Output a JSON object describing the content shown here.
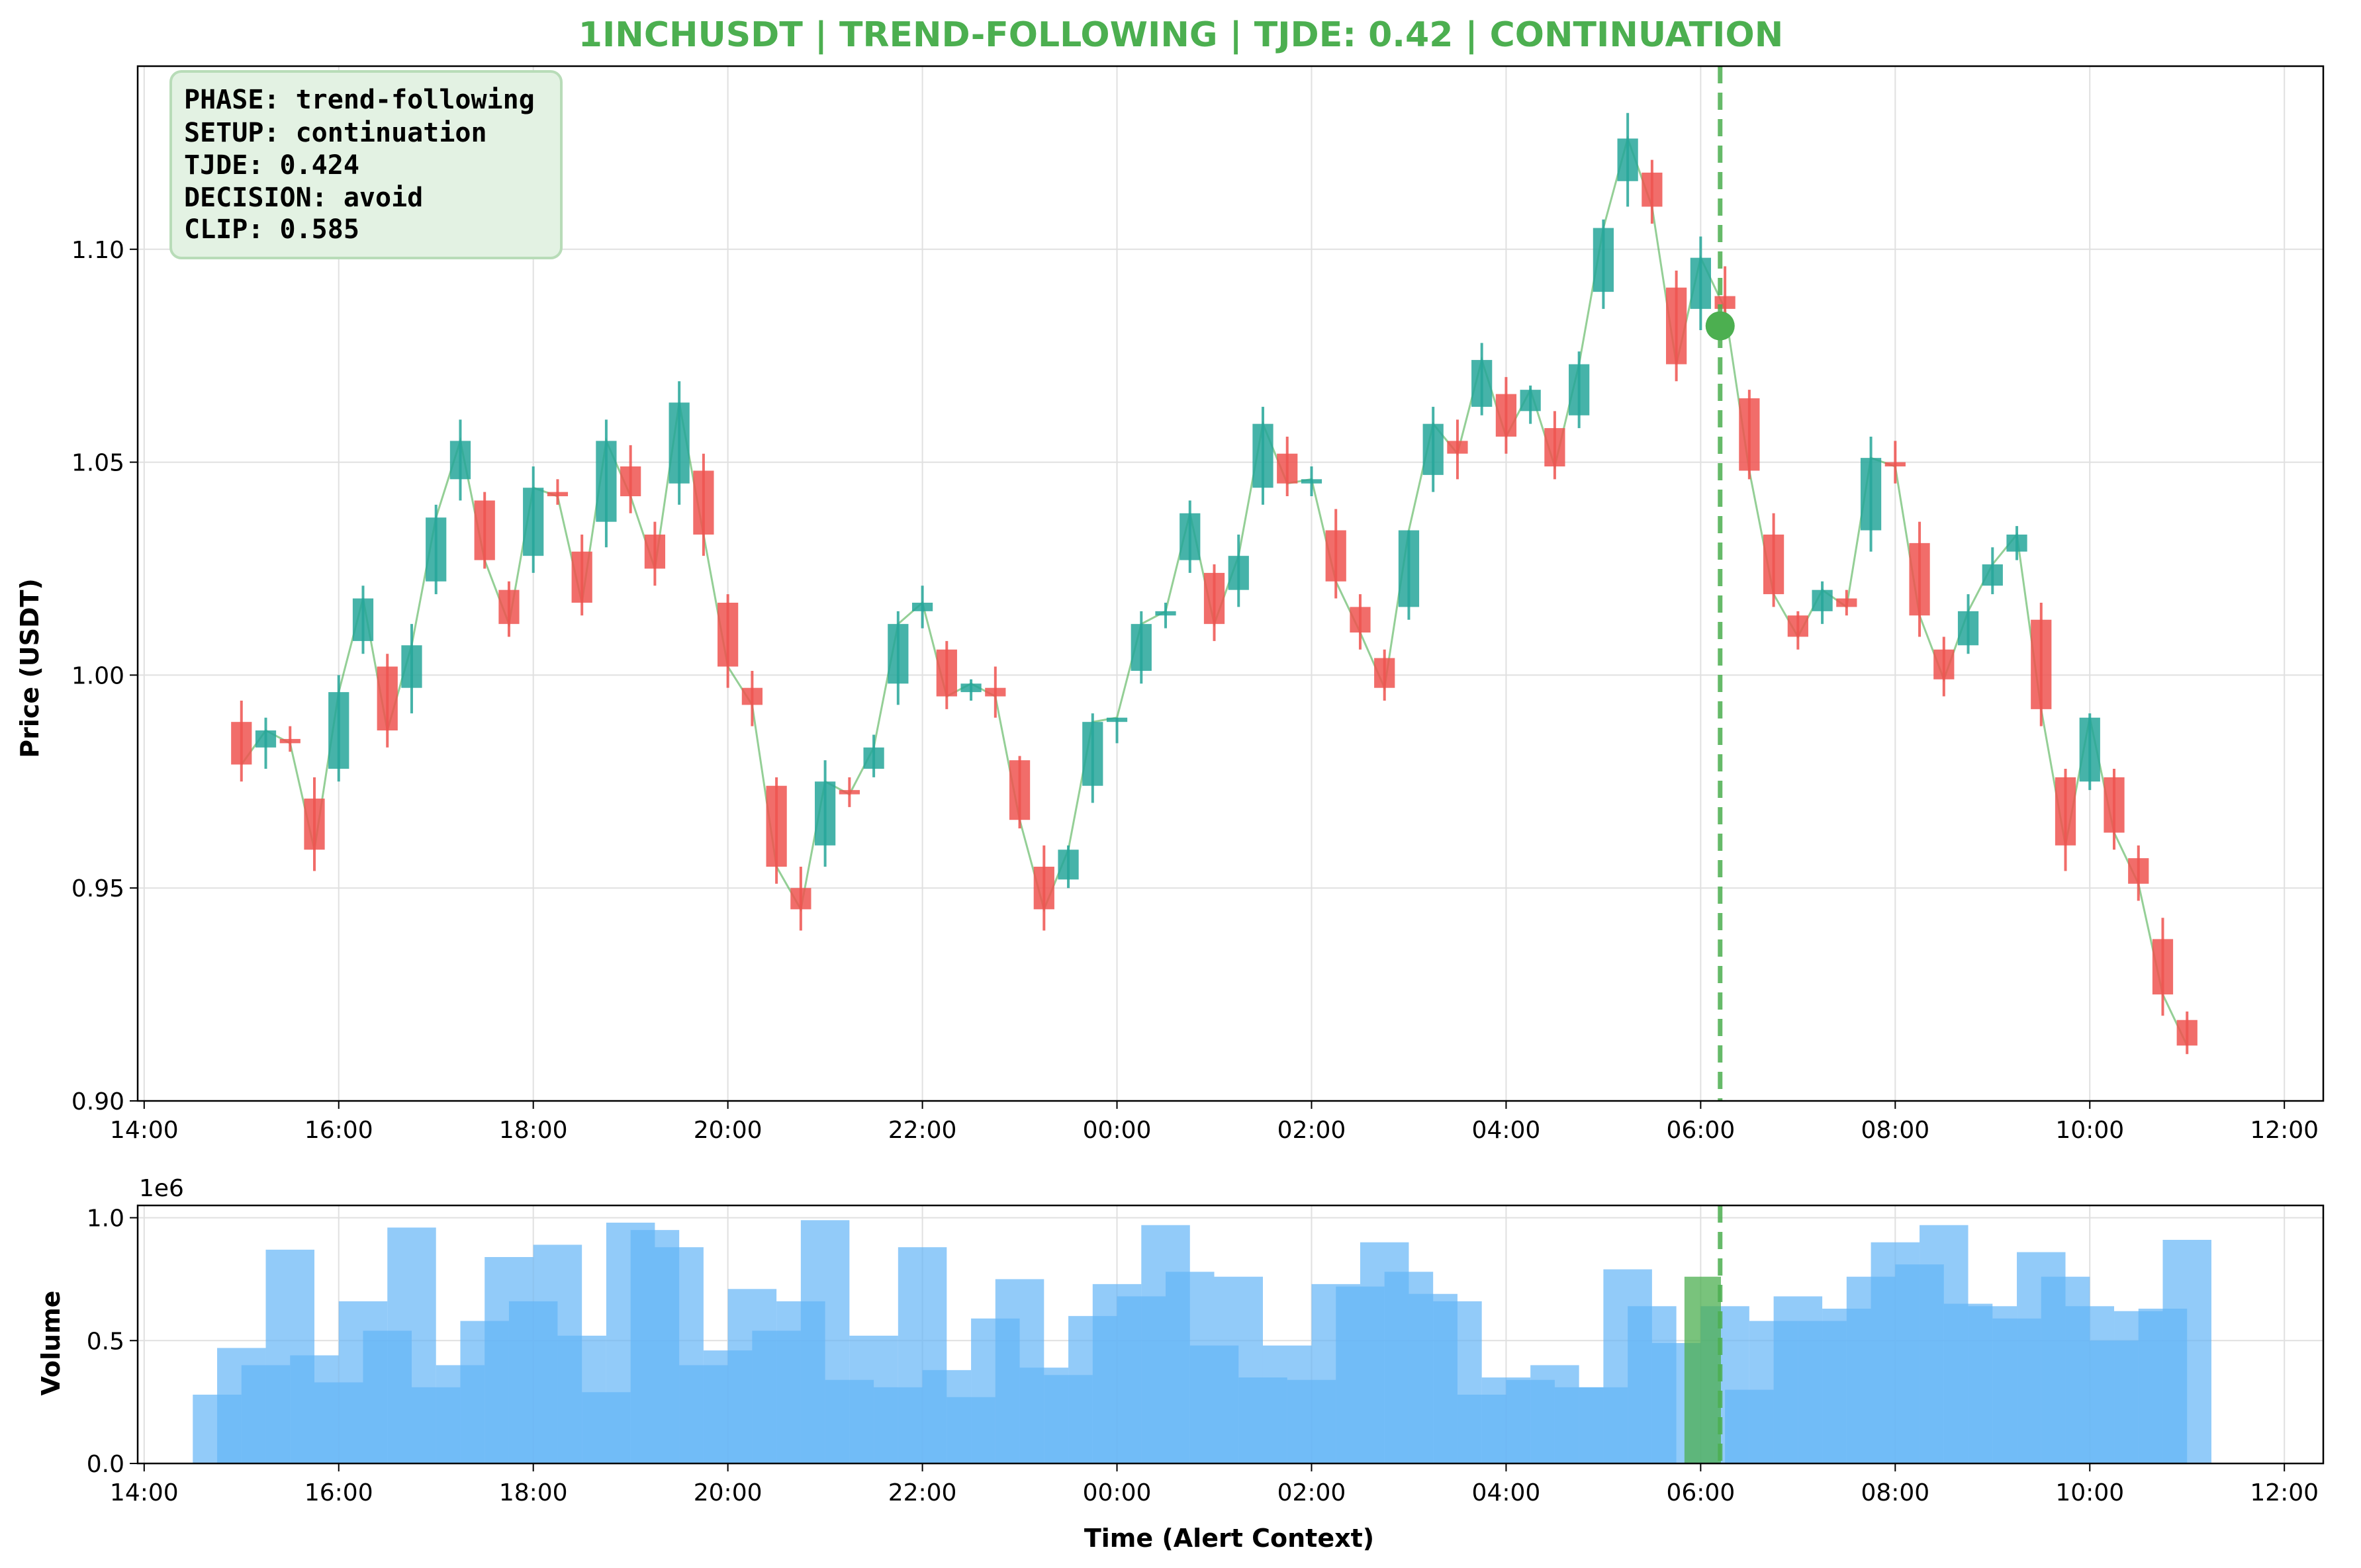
{
  "colors": {
    "title": "#4caf50",
    "up": "#26a69a",
    "down": "#ef5350",
    "trend_line": "#4caf50",
    "alert": "#4caf50",
    "volume": "#64b5f6",
    "volume_alert": "#4caf50",
    "grid": "#e0e0e0",
    "info_box_fill": "#e3f2e3",
    "info_box_border": "#b8dcb8"
  },
  "chart_data": [
    {
      "type": "candlestick",
      "title": "1INCHUSDT | TREND-FOLLOWING | TJDE: 0.42 | CONTINUATION",
      "xlabel": "",
      "ylabel": "Price (USDT)",
      "x_ticks": [
        "14:00",
        "16:00",
        "18:00",
        "20:00",
        "22:00",
        "00:00",
        "02:00",
        "04:00",
        "06:00",
        "08:00",
        "10:00",
        "12:00"
      ],
      "y_ticks": [
        "0.90",
        "0.95",
        "1.00",
        "1.05",
        "1.10"
      ],
      "xlim": [
        "14:00",
        "12:00"
      ],
      "ylim": [
        0.9,
        1.143
      ],
      "grid": true,
      "info_box": {
        "lines": [
          "PHASE: trend-following",
          "SETUP: continuation",
          "TJDE: 0.424",
          "DECISION: avoid",
          "CLIP: 0.585"
        ],
        "placement": "top-left"
      },
      "alert_time": "06:12",
      "alert_price": 1.082,
      "candles": [
        {
          "t": "15:00",
          "o": 0.989,
          "h": 0.994,
          "l": 0.975,
          "c": 0.979
        },
        {
          "t": "15:15",
          "o": 0.983,
          "h": 0.99,
          "l": 0.978,
          "c": 0.987
        },
        {
          "t": "15:30",
          "o": 0.985,
          "h": 0.988,
          "l": 0.982,
          "c": 0.984
        },
        {
          "t": "15:45",
          "o": 0.971,
          "h": 0.976,
          "l": 0.954,
          "c": 0.959
        },
        {
          "t": "16:00",
          "o": 0.978,
          "h": 1.0,
          "l": 0.975,
          "c": 0.996
        },
        {
          "t": "16:15",
          "o": 1.008,
          "h": 1.021,
          "l": 1.005,
          "c": 1.018
        },
        {
          "t": "16:30",
          "o": 1.002,
          "h": 1.005,
          "l": 0.983,
          "c": 0.987
        },
        {
          "t": "16:45",
          "o": 0.997,
          "h": 1.012,
          "l": 0.991,
          "c": 1.007
        },
        {
          "t": "17:00",
          "o": 1.022,
          "h": 1.04,
          "l": 1.019,
          "c": 1.037
        },
        {
          "t": "17:15",
          "o": 1.046,
          "h": 1.06,
          "l": 1.041,
          "c": 1.055
        },
        {
          "t": "17:30",
          "o": 1.041,
          "h": 1.043,
          "l": 1.025,
          "c": 1.027
        },
        {
          "t": "17:45",
          "o": 1.02,
          "h": 1.022,
          "l": 1.009,
          "c": 1.012
        },
        {
          "t": "18:00",
          "o": 1.028,
          "h": 1.049,
          "l": 1.024,
          "c": 1.044
        },
        {
          "t": "18:15",
          "o": 1.043,
          "h": 1.046,
          "l": 1.04,
          "c": 1.042
        },
        {
          "t": "18:30",
          "o": 1.029,
          "h": 1.033,
          "l": 1.014,
          "c": 1.017
        },
        {
          "t": "18:45",
          "o": 1.036,
          "h": 1.06,
          "l": 1.03,
          "c": 1.055
        },
        {
          "t": "19:00",
          "o": 1.049,
          "h": 1.054,
          "l": 1.038,
          "c": 1.042
        },
        {
          "t": "19:15",
          "o": 1.033,
          "h": 1.036,
          "l": 1.021,
          "c": 1.025
        },
        {
          "t": "19:30",
          "o": 1.045,
          "h": 1.069,
          "l": 1.04,
          "c": 1.064
        },
        {
          "t": "19:45",
          "o": 1.048,
          "h": 1.052,
          "l": 1.028,
          "c": 1.033
        },
        {
          "t": "20:00",
          "o": 1.017,
          "h": 1.019,
          "l": 0.997,
          "c": 1.002
        },
        {
          "t": "20:15",
          "o": 0.997,
          "h": 1.001,
          "l": 0.988,
          "c": 0.993
        },
        {
          "t": "20:30",
          "o": 0.974,
          "h": 0.976,
          "l": 0.951,
          "c": 0.955
        },
        {
          "t": "20:45",
          "o": 0.95,
          "h": 0.955,
          "l": 0.94,
          "c": 0.945
        },
        {
          "t": "21:00",
          "o": 0.96,
          "h": 0.98,
          "l": 0.955,
          "c": 0.975
        },
        {
          "t": "21:15",
          "o": 0.973,
          "h": 0.976,
          "l": 0.969,
          "c": 0.972
        },
        {
          "t": "21:30",
          "o": 0.978,
          "h": 0.986,
          "l": 0.976,
          "c": 0.983
        },
        {
          "t": "21:45",
          "o": 0.998,
          "h": 1.015,
          "l": 0.993,
          "c": 1.012
        },
        {
          "t": "22:00",
          "o": 1.015,
          "h": 1.021,
          "l": 1.011,
          "c": 1.017
        },
        {
          "t": "22:15",
          "o": 1.006,
          "h": 1.008,
          "l": 0.992,
          "c": 0.995
        },
        {
          "t": "22:30",
          "o": 0.996,
          "h": 0.999,
          "l": 0.994,
          "c": 0.998
        },
        {
          "t": "22:45",
          "o": 0.997,
          "h": 1.002,
          "l": 0.99,
          "c": 0.995
        },
        {
          "t": "23:00",
          "o": 0.98,
          "h": 0.981,
          "l": 0.964,
          "c": 0.966
        },
        {
          "t": "23:15",
          "o": 0.955,
          "h": 0.96,
          "l": 0.94,
          "c": 0.945
        },
        {
          "t": "23:30",
          "o": 0.952,
          "h": 0.96,
          "l": 0.95,
          "c": 0.959
        },
        {
          "t": "23:45",
          "o": 0.974,
          "h": 0.991,
          "l": 0.97,
          "c": 0.989
        },
        {
          "t": "00:00",
          "o": 0.989,
          "h": 0.99,
          "l": 0.984,
          "c": 0.99
        },
        {
          "t": "00:15",
          "o": 1.001,
          "h": 1.015,
          "l": 0.998,
          "c": 1.012
        },
        {
          "t": "00:30",
          "o": 1.014,
          "h": 1.017,
          "l": 1.011,
          "c": 1.015
        },
        {
          "t": "00:45",
          "o": 1.027,
          "h": 1.041,
          "l": 1.024,
          "c": 1.038
        },
        {
          "t": "01:00",
          "o": 1.024,
          "h": 1.026,
          "l": 1.008,
          "c": 1.012
        },
        {
          "t": "01:15",
          "o": 1.02,
          "h": 1.033,
          "l": 1.016,
          "c": 1.028
        },
        {
          "t": "01:30",
          "o": 1.044,
          "h": 1.063,
          "l": 1.04,
          "c": 1.059
        },
        {
          "t": "01:45",
          "o": 1.052,
          "h": 1.056,
          "l": 1.042,
          "c": 1.045
        },
        {
          "t": "02:00",
          "o": 1.045,
          "h": 1.049,
          "l": 1.042,
          "c": 1.046
        },
        {
          "t": "02:15",
          "o": 1.034,
          "h": 1.039,
          "l": 1.018,
          "c": 1.022
        },
        {
          "t": "02:30",
          "o": 1.016,
          "h": 1.019,
          "l": 1.006,
          "c": 1.01
        },
        {
          "t": "02:45",
          "o": 1.004,
          "h": 1.006,
          "l": 0.994,
          "c": 0.997
        },
        {
          "t": "03:00",
          "o": 1.016,
          "h": 1.034,
          "l": 1.013,
          "c": 1.034
        },
        {
          "t": "03:15",
          "o": 1.047,
          "h": 1.063,
          "l": 1.043,
          "c": 1.059
        },
        {
          "t": "03:30",
          "o": 1.055,
          "h": 1.06,
          "l": 1.046,
          "c": 1.052
        },
        {
          "t": "03:45",
          "o": 1.063,
          "h": 1.078,
          "l": 1.061,
          "c": 1.074
        },
        {
          "t": "04:00",
          "o": 1.066,
          "h": 1.07,
          "l": 1.052,
          "c": 1.056
        },
        {
          "t": "04:15",
          "o": 1.062,
          "h": 1.068,
          "l": 1.059,
          "c": 1.067
        },
        {
          "t": "04:30",
          "o": 1.058,
          "h": 1.062,
          "l": 1.046,
          "c": 1.049
        },
        {
          "t": "04:45",
          "o": 1.061,
          "h": 1.076,
          "l": 1.058,
          "c": 1.073
        },
        {
          "t": "05:00",
          "o": 1.09,
          "h": 1.107,
          "l": 1.086,
          "c": 1.105
        },
        {
          "t": "05:15",
          "o": 1.116,
          "h": 1.132,
          "l": 1.11,
          "c": 1.126
        },
        {
          "t": "05:30",
          "o": 1.118,
          "h": 1.121,
          "l": 1.106,
          "c": 1.11
        },
        {
          "t": "05:45",
          "o": 1.091,
          "h": 1.095,
          "l": 1.069,
          "c": 1.073
        },
        {
          "t": "06:00",
          "o": 1.086,
          "h": 1.103,
          "l": 1.081,
          "c": 1.098
        },
        {
          "t": "06:15",
          "o": 1.089,
          "h": 1.096,
          "l": 1.082,
          "c": 1.086
        },
        {
          "t": "06:30",
          "o": 1.065,
          "h": 1.067,
          "l": 1.046,
          "c": 1.048
        },
        {
          "t": "06:45",
          "o": 1.033,
          "h": 1.038,
          "l": 1.016,
          "c": 1.019
        },
        {
          "t": "07:00",
          "o": 1.014,
          "h": 1.015,
          "l": 1.006,
          "c": 1.009
        },
        {
          "t": "07:15",
          "o": 1.015,
          "h": 1.022,
          "l": 1.012,
          "c": 1.02
        },
        {
          "t": "07:30",
          "o": 1.018,
          "h": 1.02,
          "l": 1.014,
          "c": 1.016
        },
        {
          "t": "07:45",
          "o": 1.034,
          "h": 1.056,
          "l": 1.029,
          "c": 1.051
        },
        {
          "t": "08:00",
          "o": 1.05,
          "h": 1.055,
          "l": 1.045,
          "c": 1.049
        },
        {
          "t": "08:15",
          "o": 1.031,
          "h": 1.036,
          "l": 1.009,
          "c": 1.014
        },
        {
          "t": "08:30",
          "o": 1.006,
          "h": 1.009,
          "l": 0.995,
          "c": 0.999
        },
        {
          "t": "08:45",
          "o": 1.007,
          "h": 1.019,
          "l": 1.005,
          "c": 1.015
        },
        {
          "t": "09:00",
          "o": 1.021,
          "h": 1.03,
          "l": 1.019,
          "c": 1.026
        },
        {
          "t": "09:15",
          "o": 1.029,
          "h": 1.035,
          "l": 1.027,
          "c": 1.033
        },
        {
          "t": "09:30",
          "o": 1.013,
          "h": 1.017,
          "l": 0.988,
          "c": 0.992
        },
        {
          "t": "09:45",
          "o": 0.976,
          "h": 0.978,
          "l": 0.954,
          "c": 0.96
        },
        {
          "t": "10:00",
          "o": 0.975,
          "h": 0.991,
          "l": 0.973,
          "c": 0.99
        },
        {
          "t": "10:15",
          "o": 0.976,
          "h": 0.978,
          "l": 0.959,
          "c": 0.963
        },
        {
          "t": "10:30",
          "o": 0.957,
          "h": 0.96,
          "l": 0.947,
          "c": 0.951
        },
        {
          "t": "10:45",
          "o": 0.938,
          "h": 0.943,
          "l": 0.92,
          "c": 0.925
        },
        {
          "t": "11:00",
          "o": 0.919,
          "h": 0.921,
          "l": 0.911,
          "c": 0.913
        }
      ]
    },
    {
      "type": "bar",
      "xlabel": "Time (Alert Context)",
      "ylabel": "Volume",
      "scale_label": "1e6",
      "x_ticks": [
        "14:00",
        "16:00",
        "18:00",
        "20:00",
        "22:00",
        "00:00",
        "02:00",
        "04:00",
        "06:00",
        "08:00",
        "10:00",
        "12:00"
      ],
      "y_ticks": [
        "0.0",
        "0.5",
        "1.0"
      ],
      "ylim": [
        0,
        1.05
      ],
      "grid": true,
      "alert_bar": {
        "t": "06:00",
        "value": 0.76
      },
      "bars": [
        {
          "t": "14:45",
          "v": 0.28
        },
        {
          "t": "15:00",
          "v": 0.47
        },
        {
          "t": "15:15",
          "v": 0.4
        },
        {
          "t": "15:30",
          "v": 0.87
        },
        {
          "t": "15:45",
          "v": 0.44
        },
        {
          "t": "16:00",
          "v": 0.33
        },
        {
          "t": "16:15",
          "v": 0.66
        },
        {
          "t": "16:30",
          "v": 0.54
        },
        {
          "t": "16:45",
          "v": 0.96
        },
        {
          "t": "17:00",
          "v": 0.31
        },
        {
          "t": "17:15",
          "v": 0.4
        },
        {
          "t": "17:30",
          "v": 0.58
        },
        {
          "t": "17:45",
          "v": 0.84
        },
        {
          "t": "18:00",
          "v": 0.66
        },
        {
          "t": "18:15",
          "v": 0.89
        },
        {
          "t": "18:30",
          "v": 0.52
        },
        {
          "t": "18:45",
          "v": 0.29
        },
        {
          "t": "19:00",
          "v": 0.98
        },
        {
          "t": "19:15",
          "v": 0.95
        },
        {
          "t": "19:30",
          "v": 0.88
        },
        {
          "t": "19:45",
          "v": 0.4
        },
        {
          "t": "20:00",
          "v": 0.46
        },
        {
          "t": "20:15",
          "v": 0.71
        },
        {
          "t": "20:30",
          "v": 0.54
        },
        {
          "t": "20:45",
          "v": 0.66
        },
        {
          "t": "21:00",
          "v": 0.99
        },
        {
          "t": "21:15",
          "v": 0.34
        },
        {
          "t": "21:30",
          "v": 0.52
        },
        {
          "t": "21:45",
          "v": 0.31
        },
        {
          "t": "22:00",
          "v": 0.88
        },
        {
          "t": "22:15",
          "v": 0.38
        },
        {
          "t": "22:30",
          "v": 0.27
        },
        {
          "t": "22:45",
          "v": 0.59
        },
        {
          "t": "23:00",
          "v": 0.75
        },
        {
          "t": "23:15",
          "v": 0.39
        },
        {
          "t": "23:30",
          "v": 0.36
        },
        {
          "t": "23:45",
          "v": 0.6
        },
        {
          "t": "00:00",
          "v": 0.73
        },
        {
          "t": "00:15",
          "v": 0.68
        },
        {
          "t": "00:30",
          "v": 0.97
        },
        {
          "t": "00:45",
          "v": 0.78
        },
        {
          "t": "01:00",
          "v": 0.48
        },
        {
          "t": "01:15",
          "v": 0.76
        },
        {
          "t": "01:30",
          "v": 0.35
        },
        {
          "t": "01:45",
          "v": 0.48
        },
        {
          "t": "02:00",
          "v": 0.34
        },
        {
          "t": "02:15",
          "v": 0.73
        },
        {
          "t": "02:30",
          "v": 0.72
        },
        {
          "t": "02:45",
          "v": 0.9
        },
        {
          "t": "03:00",
          "v": 0.78
        },
        {
          "t": "03:15",
          "v": 0.69
        },
        {
          "t": "03:30",
          "v": 0.66
        },
        {
          "t": "03:45",
          "v": 0.28
        },
        {
          "t": "04:00",
          "v": 0.35
        },
        {
          "t": "04:15",
          "v": 0.34
        },
        {
          "t": "04:30",
          "v": 0.4
        },
        {
          "t": "04:45",
          "v": 0.31
        },
        {
          "t": "05:00",
          "v": 0.31
        },
        {
          "t": "05:15",
          "v": 0.79
        },
        {
          "t": "05:30",
          "v": 0.64
        },
        {
          "t": "05:45",
          "v": 0.49
        },
        {
          "t": "06:15",
          "v": 0.64
        },
        {
          "t": "06:30",
          "v": 0.3
        },
        {
          "t": "06:45",
          "v": 0.58
        },
        {
          "t": "07:00",
          "v": 0.68
        },
        {
          "t": "07:15",
          "v": 0.58
        },
        {
          "t": "07:30",
          "v": 0.63
        },
        {
          "t": "07:45",
          "v": 0.76
        },
        {
          "t": "08:00",
          "v": 0.9
        },
        {
          "t": "08:15",
          "v": 0.81
        },
        {
          "t": "08:30",
          "v": 0.97
        },
        {
          "t": "08:45",
          "v": 0.65
        },
        {
          "t": "09:00",
          "v": 0.64
        },
        {
          "t": "09:15",
          "v": 0.59
        },
        {
          "t": "09:30",
          "v": 0.86
        },
        {
          "t": "09:45",
          "v": 0.76
        },
        {
          "t": "10:00",
          "v": 0.64
        },
        {
          "t": "10:15",
          "v": 0.5
        },
        {
          "t": "10:30",
          "v": 0.62
        },
        {
          "t": "10:45",
          "v": 0.63
        },
        {
          "t": "11:00",
          "v": 0.91
        }
      ]
    }
  ]
}
